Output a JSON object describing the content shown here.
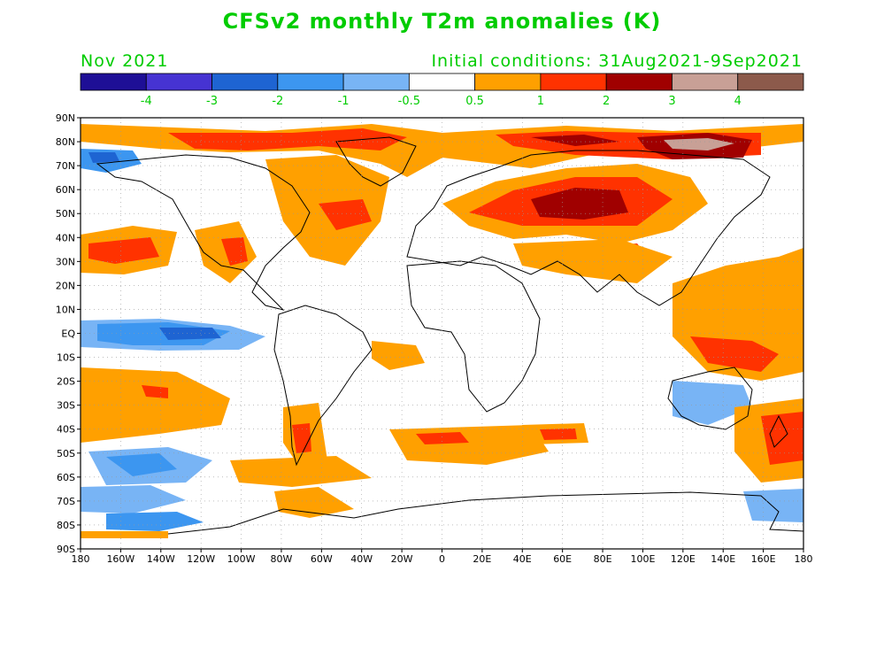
{
  "title": "CFSv2 monthly T2m anomalies (K)",
  "valid_month": "Nov 2021",
  "initial_conditions": "Initial conditions: 31Aug2021-9Sep2021",
  "colorbar": {
    "colors": [
      "#1e0f96",
      "#4633d2",
      "#1e64d2",
      "#3c96f0",
      "#78b4f5",
      "#ffffff",
      "#ffa000",
      "#ff3200",
      "#a00000",
      "#c8a096",
      "#8c5a4b"
    ],
    "labels": [
      "-4",
      "-3",
      "-2",
      "-1",
      "-0.5",
      "0.5",
      "1",
      "2",
      "3",
      "4"
    ]
  },
  "map": {
    "lat_labels": [
      "90N",
      "80N",
      "70N",
      "60N",
      "50N",
      "40N",
      "30N",
      "20N",
      "10N",
      "EQ",
      "10S",
      "20S",
      "30S",
      "40S",
      "50S",
      "60S",
      "70S",
      "80S",
      "90S"
    ],
    "lon_labels": [
      "180",
      "160W",
      "140W",
      "120W",
      "100W",
      "80W",
      "60W",
      "40W",
      "20W",
      "0",
      "20E",
      "40E",
      "60E",
      "80E",
      "100E",
      "120E",
      "140E",
      "160E",
      "180"
    ]
  }
}
